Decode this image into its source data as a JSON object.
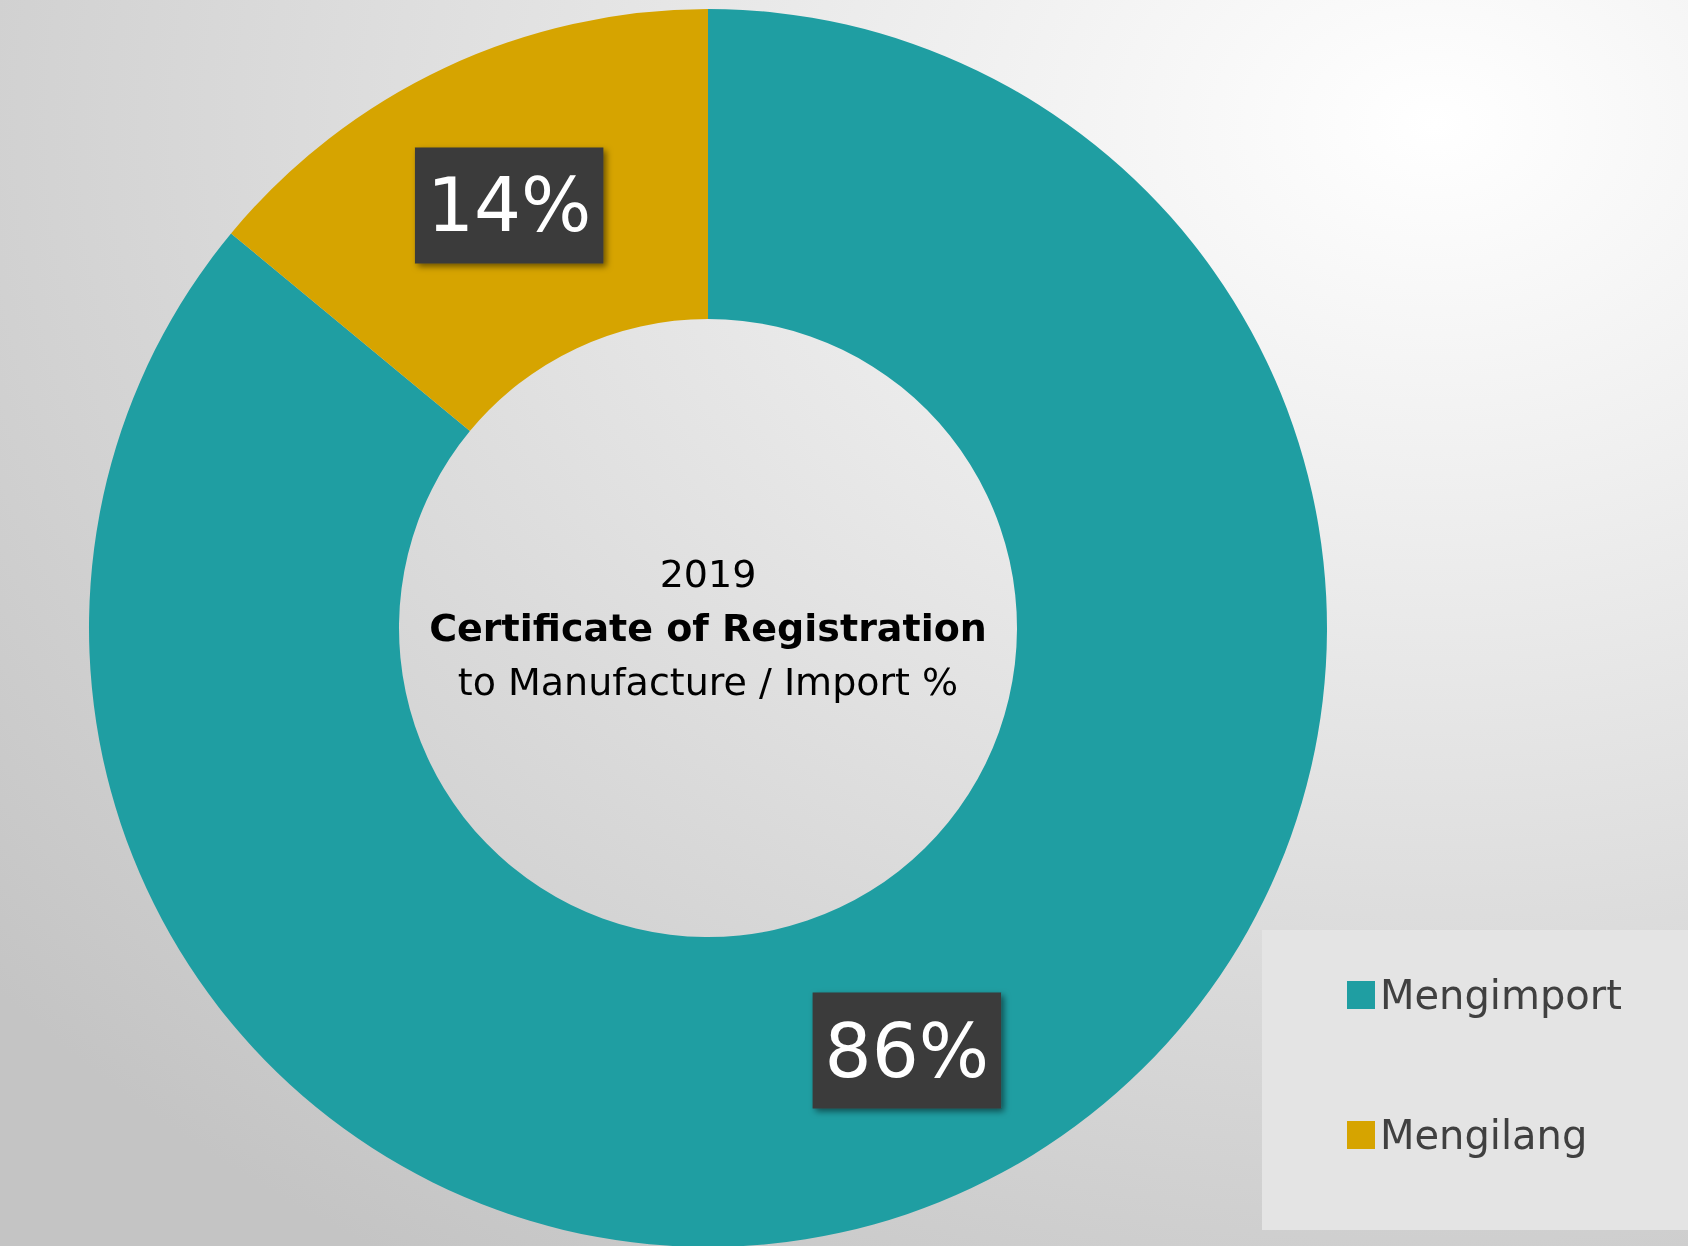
{
  "chart_data": {
    "type": "donut",
    "title": "Certificate of Registration",
    "subtitle": "to Manufacture / Import %",
    "annotations": [
      "2019"
    ],
    "categories": [
      "Mengimport",
      "Mengilang"
    ],
    "values": [
      86,
      14
    ],
    "value_labels": [
      "86%",
      "14%"
    ],
    "colors": [
      "#1f9ea2",
      "#d6a400"
    ],
    "legend": "bottom right"
  }
}
